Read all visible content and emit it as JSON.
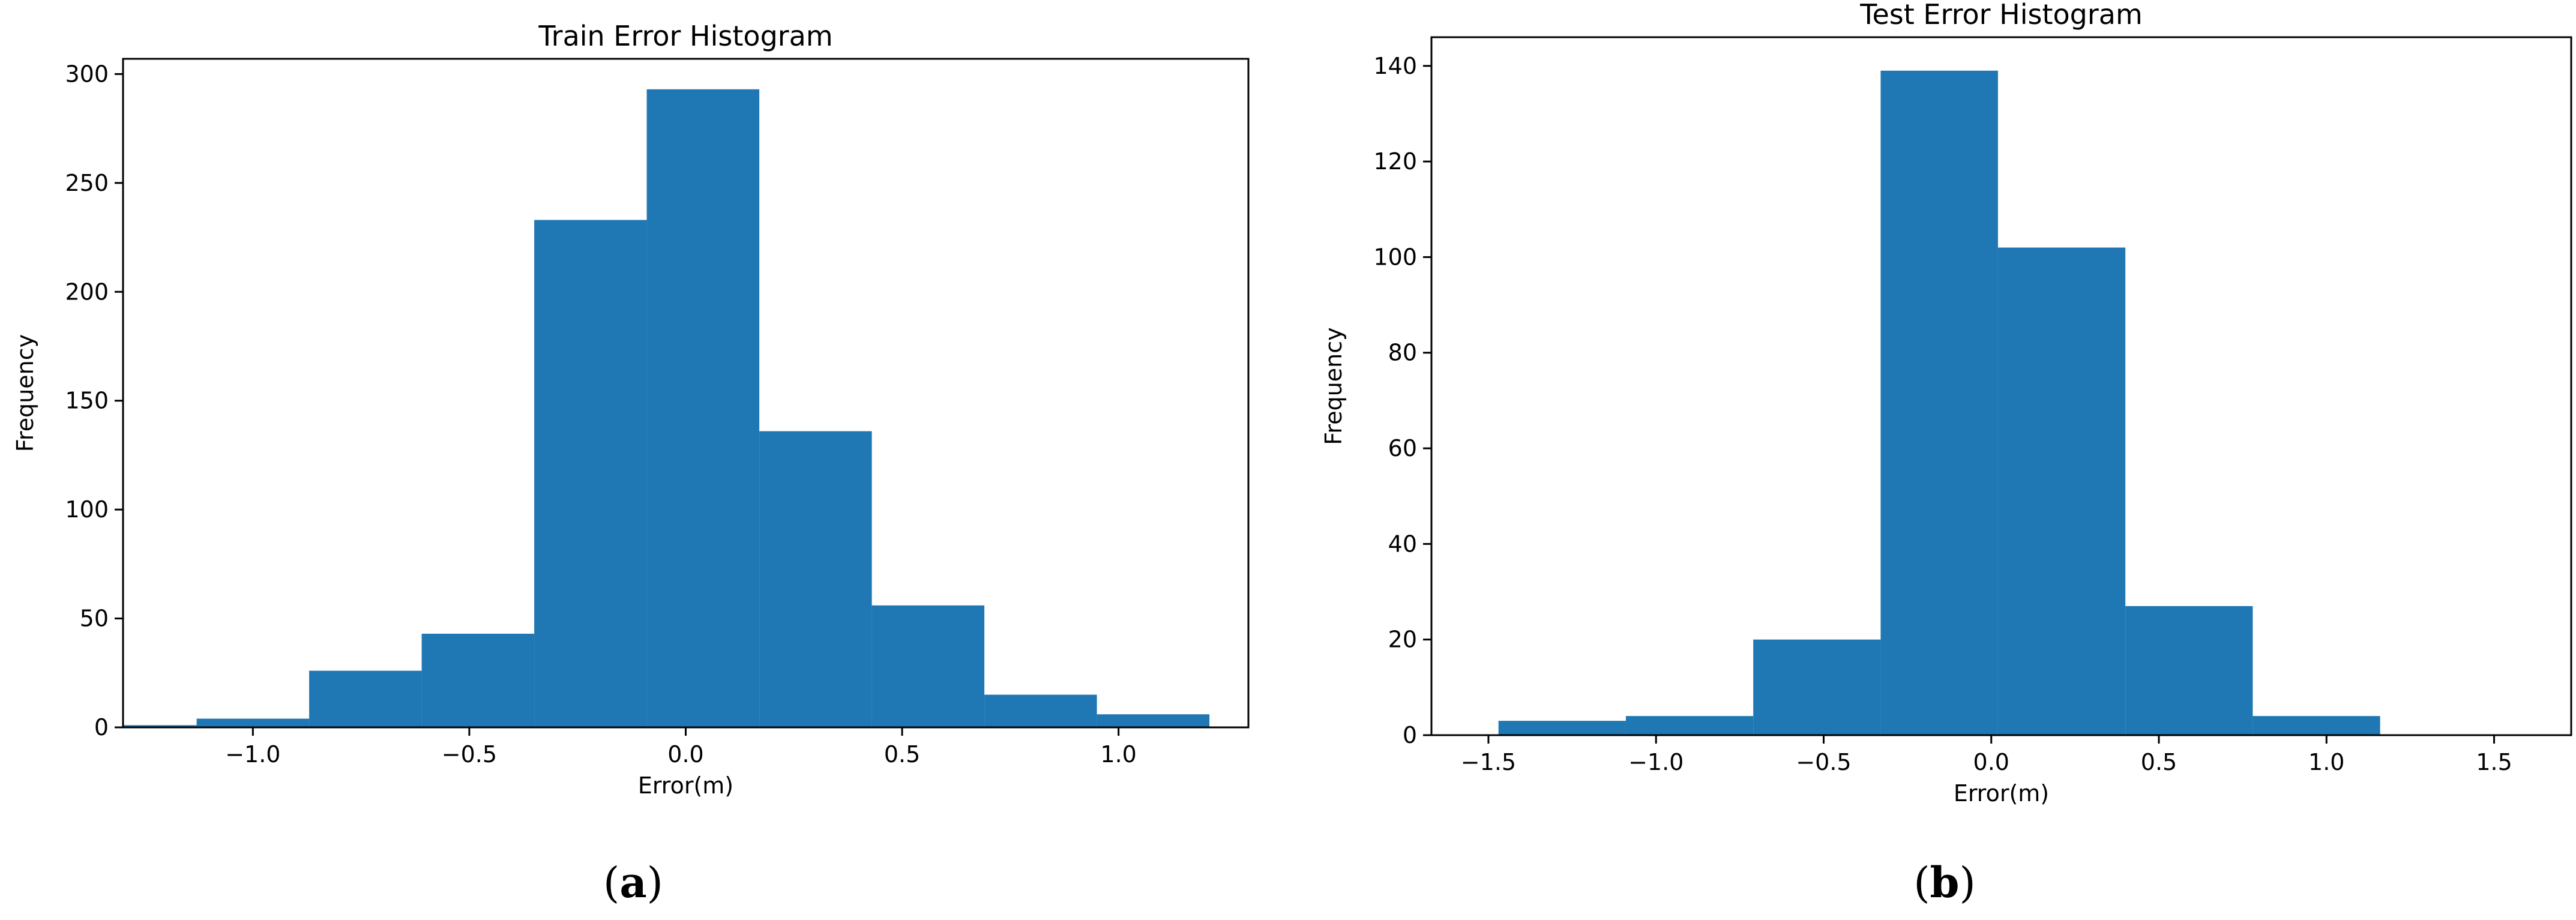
{
  "chart_data": [
    {
      "type": "bar",
      "title": "Train Error Histogram",
      "xlabel": "Error(m)",
      "ylabel": "Frequency",
      "xlim": [
        -1.3,
        1.3
      ],
      "ylim": [
        0,
        307
      ],
      "xticks": [
        -1.0,
        -0.5,
        0.0,
        0.5,
        1.0
      ],
      "xtick_labels": [
        "−1.0",
        "−0.5",
        "0.0",
        "0.5",
        "1.0"
      ],
      "yticks": [
        0,
        50,
        100,
        150,
        200,
        250,
        300
      ],
      "ytick_labels": [
        "0",
        "50",
        "100",
        "150",
        "200",
        "250",
        "300"
      ],
      "bin_edges": [
        -1.52,
        -1.13,
        -0.87,
        -0.61,
        -0.35,
        -0.09,
        0.17,
        0.43,
        0.69,
        0.95,
        1.21
      ],
      "values": [
        1,
        4,
        26,
        43,
        233,
        293,
        136,
        56,
        15,
        6
      ],
      "color": "#1f77b4",
      "caption": "(a)"
    },
    {
      "type": "bar",
      "title": "Test Error Histogram",
      "xlabel": "Error(m)",
      "ylabel": "Frequency",
      "xlim": [
        -1.67,
        1.73
      ],
      "ylim": [
        0,
        146
      ],
      "xticks": [
        -1.5,
        -1.0,
        -0.5,
        0.0,
        0.5,
        1.0,
        1.5
      ],
      "xtick_labels": [
        "−1.5",
        "−1.0",
        "−0.5",
        "0.0",
        "0.5",
        "1.0",
        "1.5"
      ],
      "yticks": [
        0,
        20,
        40,
        60,
        80,
        100,
        120,
        140
      ],
      "ytick_labels": [
        "0",
        "20",
        "40",
        "60",
        "80",
        "100",
        "120",
        "140"
      ],
      "bin_edges": [
        -1.47,
        -1.09,
        -0.71,
        -0.33,
        0.02,
        0.4,
        0.78,
        1.16
      ],
      "values": [
        3,
        4,
        20,
        139,
        102,
        27,
        4
      ],
      "color": "#1f77b4",
      "caption": "(b)"
    }
  ]
}
